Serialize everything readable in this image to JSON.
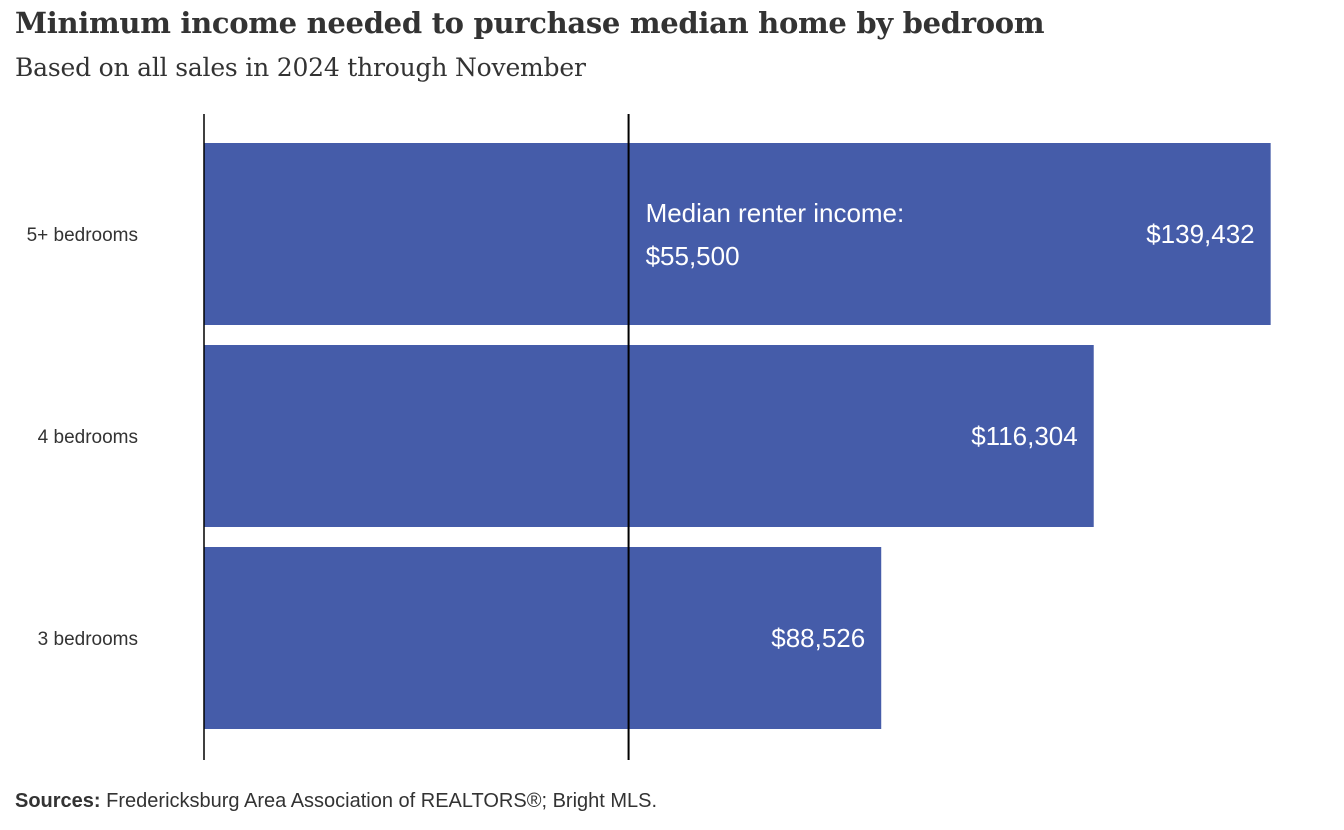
{
  "header": {
    "title": "Minimum income needed to purchase median home by bedroom",
    "subtitle": "Based on all sales in 2024 through November"
  },
  "footer": {
    "sources_label": "Sources:",
    "sources_text": "Fredericksburg  Area Association of REALTORS®;  Bright MLS."
  },
  "colors": {
    "bar": "#455ca9",
    "text": "#333333",
    "bar_label": "#ffffff",
    "reference_line": "#000000"
  },
  "chart_data": {
    "type": "bar",
    "orientation": "horizontal",
    "categories": [
      "5+ bedrooms",
      "4 bedrooms",
      "3 bedrooms"
    ],
    "values": [
      139432,
      116304,
      88526
    ],
    "value_labels": [
      "$139,432",
      "$116,304",
      "$88,526"
    ],
    "xlim": [
      0,
      140000
    ],
    "grid": false,
    "legend": "none",
    "reference_line": {
      "value": 55500,
      "label_line1": "Median renter income:",
      "label_line2": "$55,500"
    }
  }
}
